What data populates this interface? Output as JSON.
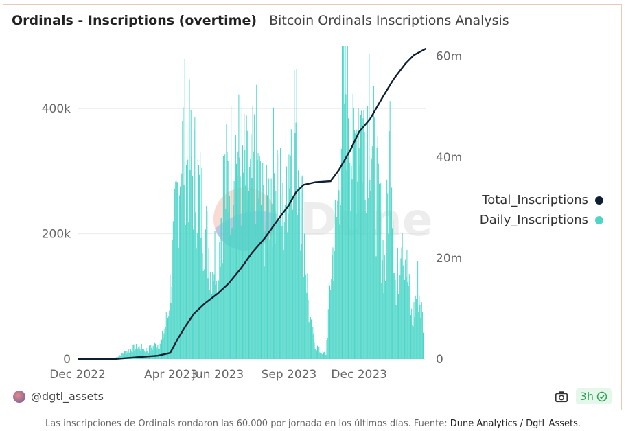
{
  "header": {
    "title": "Ordinals - Inscriptions (overtime)",
    "subtitle": "Bitcoin Ordinals Inscriptions Analysis"
  },
  "watermark": "Dune",
  "footer": {
    "author": "@dgtl_assets",
    "refresh": "3h"
  },
  "caption": {
    "text": "Las inscripciones de Ordinals rondaron las 60.000 por jornada en los últimos días. Fuente: ",
    "source": "Dune Analytics / Dgtl_Assets",
    "end": "."
  },
  "colors": {
    "daily": "#4dd6c8",
    "total": "#0f1f33",
    "grid": "#ebebeb"
  },
  "chart_data": {
    "type": "bar",
    "title": "Ordinals - Inscriptions (overtime)",
    "x_range": [
      "2022-12-01",
      "2024-02-26"
    ],
    "x_ticks": [
      "Dec 2022",
      "Apr 2023",
      "Jun 2023",
      "Sep 2023",
      "Dec 2023"
    ],
    "y_left": {
      "ticks": [
        "0",
        "200k",
        "400k"
      ],
      "tick_values": [
        0,
        200000,
        400000
      ],
      "ylim": [
        0,
        500000
      ]
    },
    "y_right": {
      "ticks": [
        "0",
        "20m",
        "40m",
        "60m"
      ],
      "tick_values": [
        0,
        20000000,
        40000000,
        60000000
      ],
      "ylim": [
        0,
        62000000
      ]
    },
    "legend": {
      "position": "right"
    },
    "series": [
      {
        "name": "Daily_Inscriptions",
        "type": "bar",
        "axis": "left",
        "color": "#4dd6c8",
        "points": [
          [
            "2023-01-20",
            3000
          ],
          [
            "2023-02-01",
            12000
          ],
          [
            "2023-02-10",
            18000
          ],
          [
            "2023-02-20",
            20000
          ],
          [
            "2023-03-01",
            15000
          ],
          [
            "2023-03-10",
            22000
          ],
          [
            "2023-03-20",
            30000
          ],
          [
            "2023-03-28",
            75000
          ],
          [
            "2023-04-05",
            200000
          ],
          [
            "2023-04-12",
            330000
          ],
          [
            "2023-04-20",
            385000
          ],
          [
            "2023-04-27",
            330000
          ],
          [
            "2023-05-04",
            310000
          ],
          [
            "2023-05-11",
            260000
          ],
          [
            "2023-05-18",
            200000
          ],
          [
            "2023-05-25",
            170000
          ],
          [
            "2023-06-01",
            190000
          ],
          [
            "2023-06-08",
            290000
          ],
          [
            "2023-06-15",
            310000
          ],
          [
            "2023-06-22",
            365000
          ],
          [
            "2023-06-29",
            340000
          ],
          [
            "2023-07-06",
            315000
          ],
          [
            "2023-07-13",
            280000
          ],
          [
            "2023-07-20",
            355000
          ],
          [
            "2023-07-27",
            265000
          ],
          [
            "2023-08-03",
            240000
          ],
          [
            "2023-08-10",
            315000
          ],
          [
            "2023-08-17",
            320000
          ],
          [
            "2023-08-24",
            240000
          ],
          [
            "2023-08-31",
            345000
          ],
          [
            "2023-09-07",
            430000
          ],
          [
            "2023-09-14",
            340000
          ],
          [
            "2023-09-21",
            210000
          ],
          [
            "2023-09-28",
            60000
          ],
          [
            "2023-10-05",
            25000
          ],
          [
            "2023-10-12",
            12000
          ],
          [
            "2023-10-19",
            9000
          ],
          [
            "2023-10-26",
            160000
          ],
          [
            "2023-11-02",
            240000
          ],
          [
            "2023-11-09",
            430000
          ],
          [
            "2023-11-16",
            500000
          ],
          [
            "2023-11-23",
            330000
          ],
          [
            "2023-11-30",
            440000
          ],
          [
            "2023-12-07",
            380000
          ],
          [
            "2023-12-14",
            480000
          ],
          [
            "2023-12-21",
            320000
          ],
          [
            "2023-12-28",
            240000
          ],
          [
            "2024-01-04",
            150000
          ],
          [
            "2024-01-11",
            420000
          ],
          [
            "2024-01-18",
            90000
          ],
          [
            "2024-01-25",
            270000
          ],
          [
            "2024-02-01",
            150000
          ],
          [
            "2024-02-08",
            60000
          ],
          [
            "2024-02-15",
            130000
          ],
          [
            "2024-02-22",
            60000
          ]
        ]
      },
      {
        "name": "Total_Inscriptions",
        "type": "line",
        "axis": "right",
        "color": "#0f1f33",
        "points": [
          [
            "2022-12-01",
            0
          ],
          [
            "2023-01-20",
            30000
          ],
          [
            "2023-02-20",
            400000
          ],
          [
            "2023-03-15",
            650000
          ],
          [
            "2023-03-31",
            1200000
          ],
          [
            "2023-04-10",
            4000000
          ],
          [
            "2023-04-20",
            6500000
          ],
          [
            "2023-05-01",
            9000000
          ],
          [
            "2023-05-15",
            11000000
          ],
          [
            "2023-06-01",
            13000000
          ],
          [
            "2023-06-15",
            15000000
          ],
          [
            "2023-07-01",
            18000000
          ],
          [
            "2023-07-15",
            21000000
          ],
          [
            "2023-08-01",
            24000000
          ],
          [
            "2023-08-15",
            27000000
          ],
          [
            "2023-09-01",
            30500000
          ],
          [
            "2023-09-10",
            33000000
          ],
          [
            "2023-09-20",
            34500000
          ],
          [
            "2023-10-05",
            35000000
          ],
          [
            "2023-10-25",
            35200000
          ],
          [
            "2023-11-05",
            37500000
          ],
          [
            "2023-11-20",
            41500000
          ],
          [
            "2023-12-01",
            45000000
          ],
          [
            "2023-12-15",
            47500000
          ],
          [
            "2024-01-01",
            52000000
          ],
          [
            "2024-01-15",
            55500000
          ],
          [
            "2024-01-30",
            58500000
          ],
          [
            "2024-02-10",
            60200000
          ],
          [
            "2024-02-26",
            61500000
          ]
        ]
      }
    ]
  }
}
